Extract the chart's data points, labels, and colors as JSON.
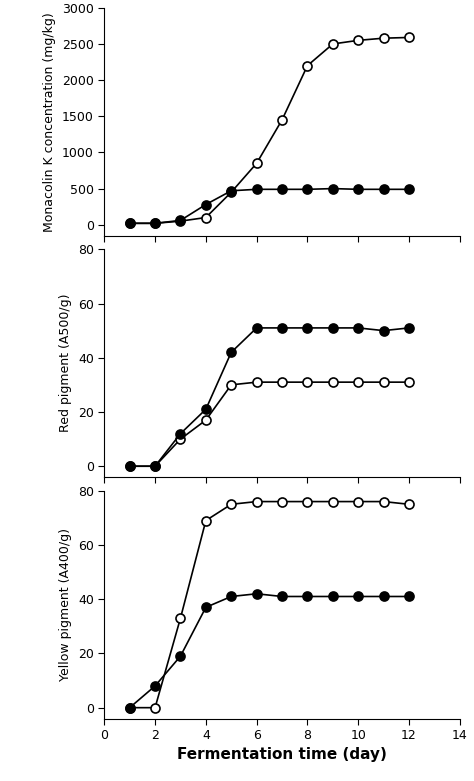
{
  "x_days": [
    1,
    2,
    3,
    4,
    5,
    6,
    7,
    8,
    9,
    10,
    11,
    12
  ],
  "monacolin_open": [
    20,
    20,
    50,
    100,
    450,
    850,
    1450,
    2200,
    2500,
    2550,
    2580,
    2590
  ],
  "monacolin_filled": [
    20,
    20,
    60,
    280,
    470,
    490,
    490,
    490,
    500,
    490,
    490,
    490
  ],
  "red_open": [
    0,
    0,
    10,
    17,
    30,
    31,
    31,
    31,
    31,
    31,
    31,
    31
  ],
  "red_filled": [
    0,
    0,
    12,
    21,
    42,
    51,
    51,
    51,
    51,
    51,
    50,
    51
  ],
  "yellow_open": [
    0,
    0,
    33,
    69,
    75,
    76,
    76,
    76,
    76,
    76,
    76,
    75
  ],
  "yellow_filled": [
    0,
    8,
    19,
    37,
    41,
    42,
    41,
    41,
    41,
    41,
    41,
    41
  ],
  "xlabel": "Fermentation time (day)",
  "ylabel1": "Monacolin K concentration (mg/kg)",
  "ylabel2": "Red pigment (A500/g)",
  "ylabel3": "Yellow pigment (A400/g)",
  "ylim1": [
    -150,
    3000
  ],
  "ylim2": [
    -4,
    80
  ],
  "ylim3": [
    -4,
    80
  ],
  "yticks1": [
    0,
    500,
    1000,
    1500,
    2000,
    2500,
    3000
  ],
  "yticks2": [
    0,
    20,
    40,
    60,
    80
  ],
  "yticks3": [
    0,
    20,
    40,
    60,
    80
  ],
  "xlim": [
    0,
    14
  ],
  "xticks": [
    0,
    2,
    4,
    6,
    8,
    10,
    12,
    14
  ]
}
